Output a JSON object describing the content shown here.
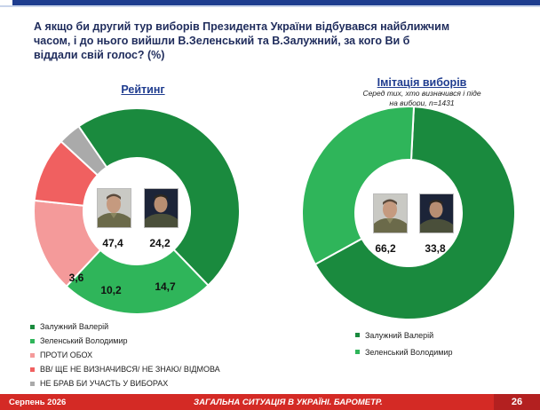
{
  "title": "А якщо би другий тур виборів Президента України відбувався найближчим часом, і до нього вийшли В.Зеленський та В.Залужний, за кого Ви б віддали свій голос? (%)",
  "colors": {
    "zaluzhnyi": "#1a8a3e",
    "zelenskyi": "#2fb55a",
    "against": "#f49a9a",
    "undecided": "#f06060",
    "not_vote": "#aaaaaa"
  },
  "chart_data": [
    {
      "type": "pie",
      "donut": true,
      "title": "Рейтинг",
      "slices": [
        {
          "label": "Залужний Валерій",
          "value": 47.4
        },
        {
          "label": "Зеленський Володимир",
          "value": 24.2
        },
        {
          "label": "ПРОТИ ОБОХ",
          "value": 14.7
        },
        {
          "label": "ВВ/ ЩЕ НЕ ВИЗНАЧИВСЯ/ НЕ ЗНАЮ/ ВІДМОВА",
          "value": 10.2
        },
        {
          "label": "НЕ БРАВ БИ УЧАСТЬ У ВИБОРАХ",
          "value": 3.6
        }
      ],
      "legend_position": "bottom-left"
    },
    {
      "type": "pie",
      "donut": true,
      "title": "Імітація виборів",
      "subtitle": "Серед тих, хто визначився і піде на вибори, n=1431",
      "slices": [
        {
          "label": "Залужний Валерій",
          "value": 66.2
        },
        {
          "label": "Зеленський Володимир",
          "value": 33.8
        }
      ],
      "legend_position": "bottom"
    }
  ],
  "footer": {
    "date": "Серпень 2026",
    "center": "ЗАГАЛЬНА СИТУАЦІЯ В УКРАЇНІ. БАРОМЕТР.",
    "page": "26"
  }
}
